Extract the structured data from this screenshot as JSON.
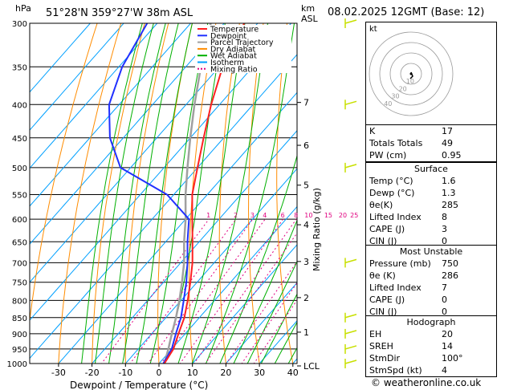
{
  "header": {
    "pressure_unit": "hPa",
    "location": "51°28'N  359°27'W  38m  ASL",
    "height_unit_line1": "km",
    "height_unit_line2": "ASL",
    "datetime": "08.02.2025  12GMT  (Base: 12)"
  },
  "legend": [
    {
      "label": "Temperature",
      "color": "#ff2020"
    },
    {
      "label": "Dewpoint",
      "color": "#2030ff"
    },
    {
      "label": "Parcel Trajectory",
      "color": "#a0a0a0"
    },
    {
      "label": "Dry Adiabat",
      "color": "#ff8c00"
    },
    {
      "label": "Wet Adiabat",
      "color": "#00b000"
    },
    {
      "label": "Isotherm",
      "color": "#00a0ff"
    },
    {
      "label": "Mixing Ratio",
      "color": "#e0007f"
    }
  ],
  "chart_data": {
    "type": "skew-t",
    "xlabel": "Dewpoint / Temperature (°C)",
    "ylabel": "Mixing Ratio (g/kg)",
    "x_ticks": [
      -30,
      -20,
      -10,
      0,
      10,
      20,
      30,
      40
    ],
    "pressure_levels": [
      300,
      350,
      400,
      450,
      500,
      550,
      600,
      650,
      700,
      750,
      800,
      850,
      900,
      950,
      1000
    ],
    "km_ticks": [
      {
        "label": "7",
        "p": 397
      },
      {
        "label": "6",
        "p": 462
      },
      {
        "label": "5",
        "p": 532
      },
      {
        "label": "4",
        "p": 612
      },
      {
        "label": "3",
        "p": 697
      },
      {
        "label": "2",
        "p": 792
      },
      {
        "label": "1",
        "p": 895
      },
      {
        "label": "LCL",
        "p": 1010
      }
    ],
    "mixing_ratio_labels": [
      "1",
      "2",
      "3",
      "4",
      "6",
      "8",
      "10",
      "15",
      "20",
      "25"
    ],
    "mixing_ratio_values": [
      1,
      2,
      3,
      4,
      6,
      8,
      10,
      15,
      20,
      25
    ],
    "temperature": {
      "p": [
        1000,
        950,
        900,
        850,
        800,
        750,
        700,
        650,
        600,
        550,
        500,
        450,
        400,
        350,
        300
      ],
      "t": [
        1.6,
        0.5,
        -2.0,
        -4.5,
        -8.0,
        -12.0,
        -16.5,
        -22.0,
        -28.0,
        -34.5,
        -40.0,
        -46.0,
        -52.5,
        -59.0,
        -64.0
      ]
    },
    "dewpoint": {
      "p": [
        1000,
        950,
        900,
        850,
        800,
        750,
        700,
        650,
        600,
        550,
        500,
        450,
        400,
        350,
        300
      ],
      "t": [
        1.3,
        0.0,
        -2.8,
        -5.5,
        -9.2,
        -13.2,
        -18.0,
        -23.5,
        -29.0,
        -42.0,
        -63.0,
        -74.0,
        -83.0,
        -89.0,
        -93.0
      ]
    },
    "parcel": {
      "p": [
        1000,
        950,
        900,
        850,
        800,
        750,
        700,
        650,
        600,
        550,
        500,
        450,
        400,
        350,
        300
      ],
      "t": [
        1.6,
        -1.0,
        -4.0,
        -7.0,
        -10.5,
        -14.5,
        -19.0,
        -24.5,
        -30.0,
        -36.5,
        -43.0,
        -50.0,
        -57.5,
        -65.5,
        -74.0
      ]
    },
    "wind_barbs_p": [
      1000,
      950,
      900,
      850,
      700,
      500,
      400,
      300
    ]
  },
  "indices": {
    "k": {
      "label": "K",
      "value": "17"
    },
    "tt": {
      "label": "Totals Totals",
      "value": "49"
    },
    "pw": {
      "label": "PW (cm)",
      "value": "0.95"
    }
  },
  "surface": {
    "title": "Surface",
    "rows": [
      {
        "label": "Temp (°C)",
        "value": "1.6"
      },
      {
        "label": "Dewp (°C)",
        "value": "1.3"
      },
      {
        "label": "θe(K)",
        "value": "285"
      },
      {
        "label": "Lifted Index",
        "value": "8"
      },
      {
        "label": "CAPE (J)",
        "value": "3"
      },
      {
        "label": "CIN (J)",
        "value": "0"
      }
    ]
  },
  "unstable": {
    "title": "Most Unstable",
    "rows": [
      {
        "label": "Pressure (mb)",
        "value": "750"
      },
      {
        "label": "θe (K)",
        "value": "286"
      },
      {
        "label": "Lifted Index",
        "value": "7"
      },
      {
        "label": "CAPE (J)",
        "value": "0"
      },
      {
        "label": "CIN (J)",
        "value": "0"
      }
    ]
  },
  "hodograph": {
    "title": "Hodograph",
    "kt_label": "kt",
    "ring_labels": [
      "10",
      "20",
      "30",
      "40"
    ],
    "rows": [
      {
        "label": "EH",
        "value": "20"
      },
      {
        "label": "SREH",
        "value": "14"
      },
      {
        "label": "StmDir",
        "value": "100°"
      },
      {
        "label": "StmSpd (kt)",
        "value": "4"
      }
    ]
  },
  "credit": "© weatheronline.co.uk"
}
